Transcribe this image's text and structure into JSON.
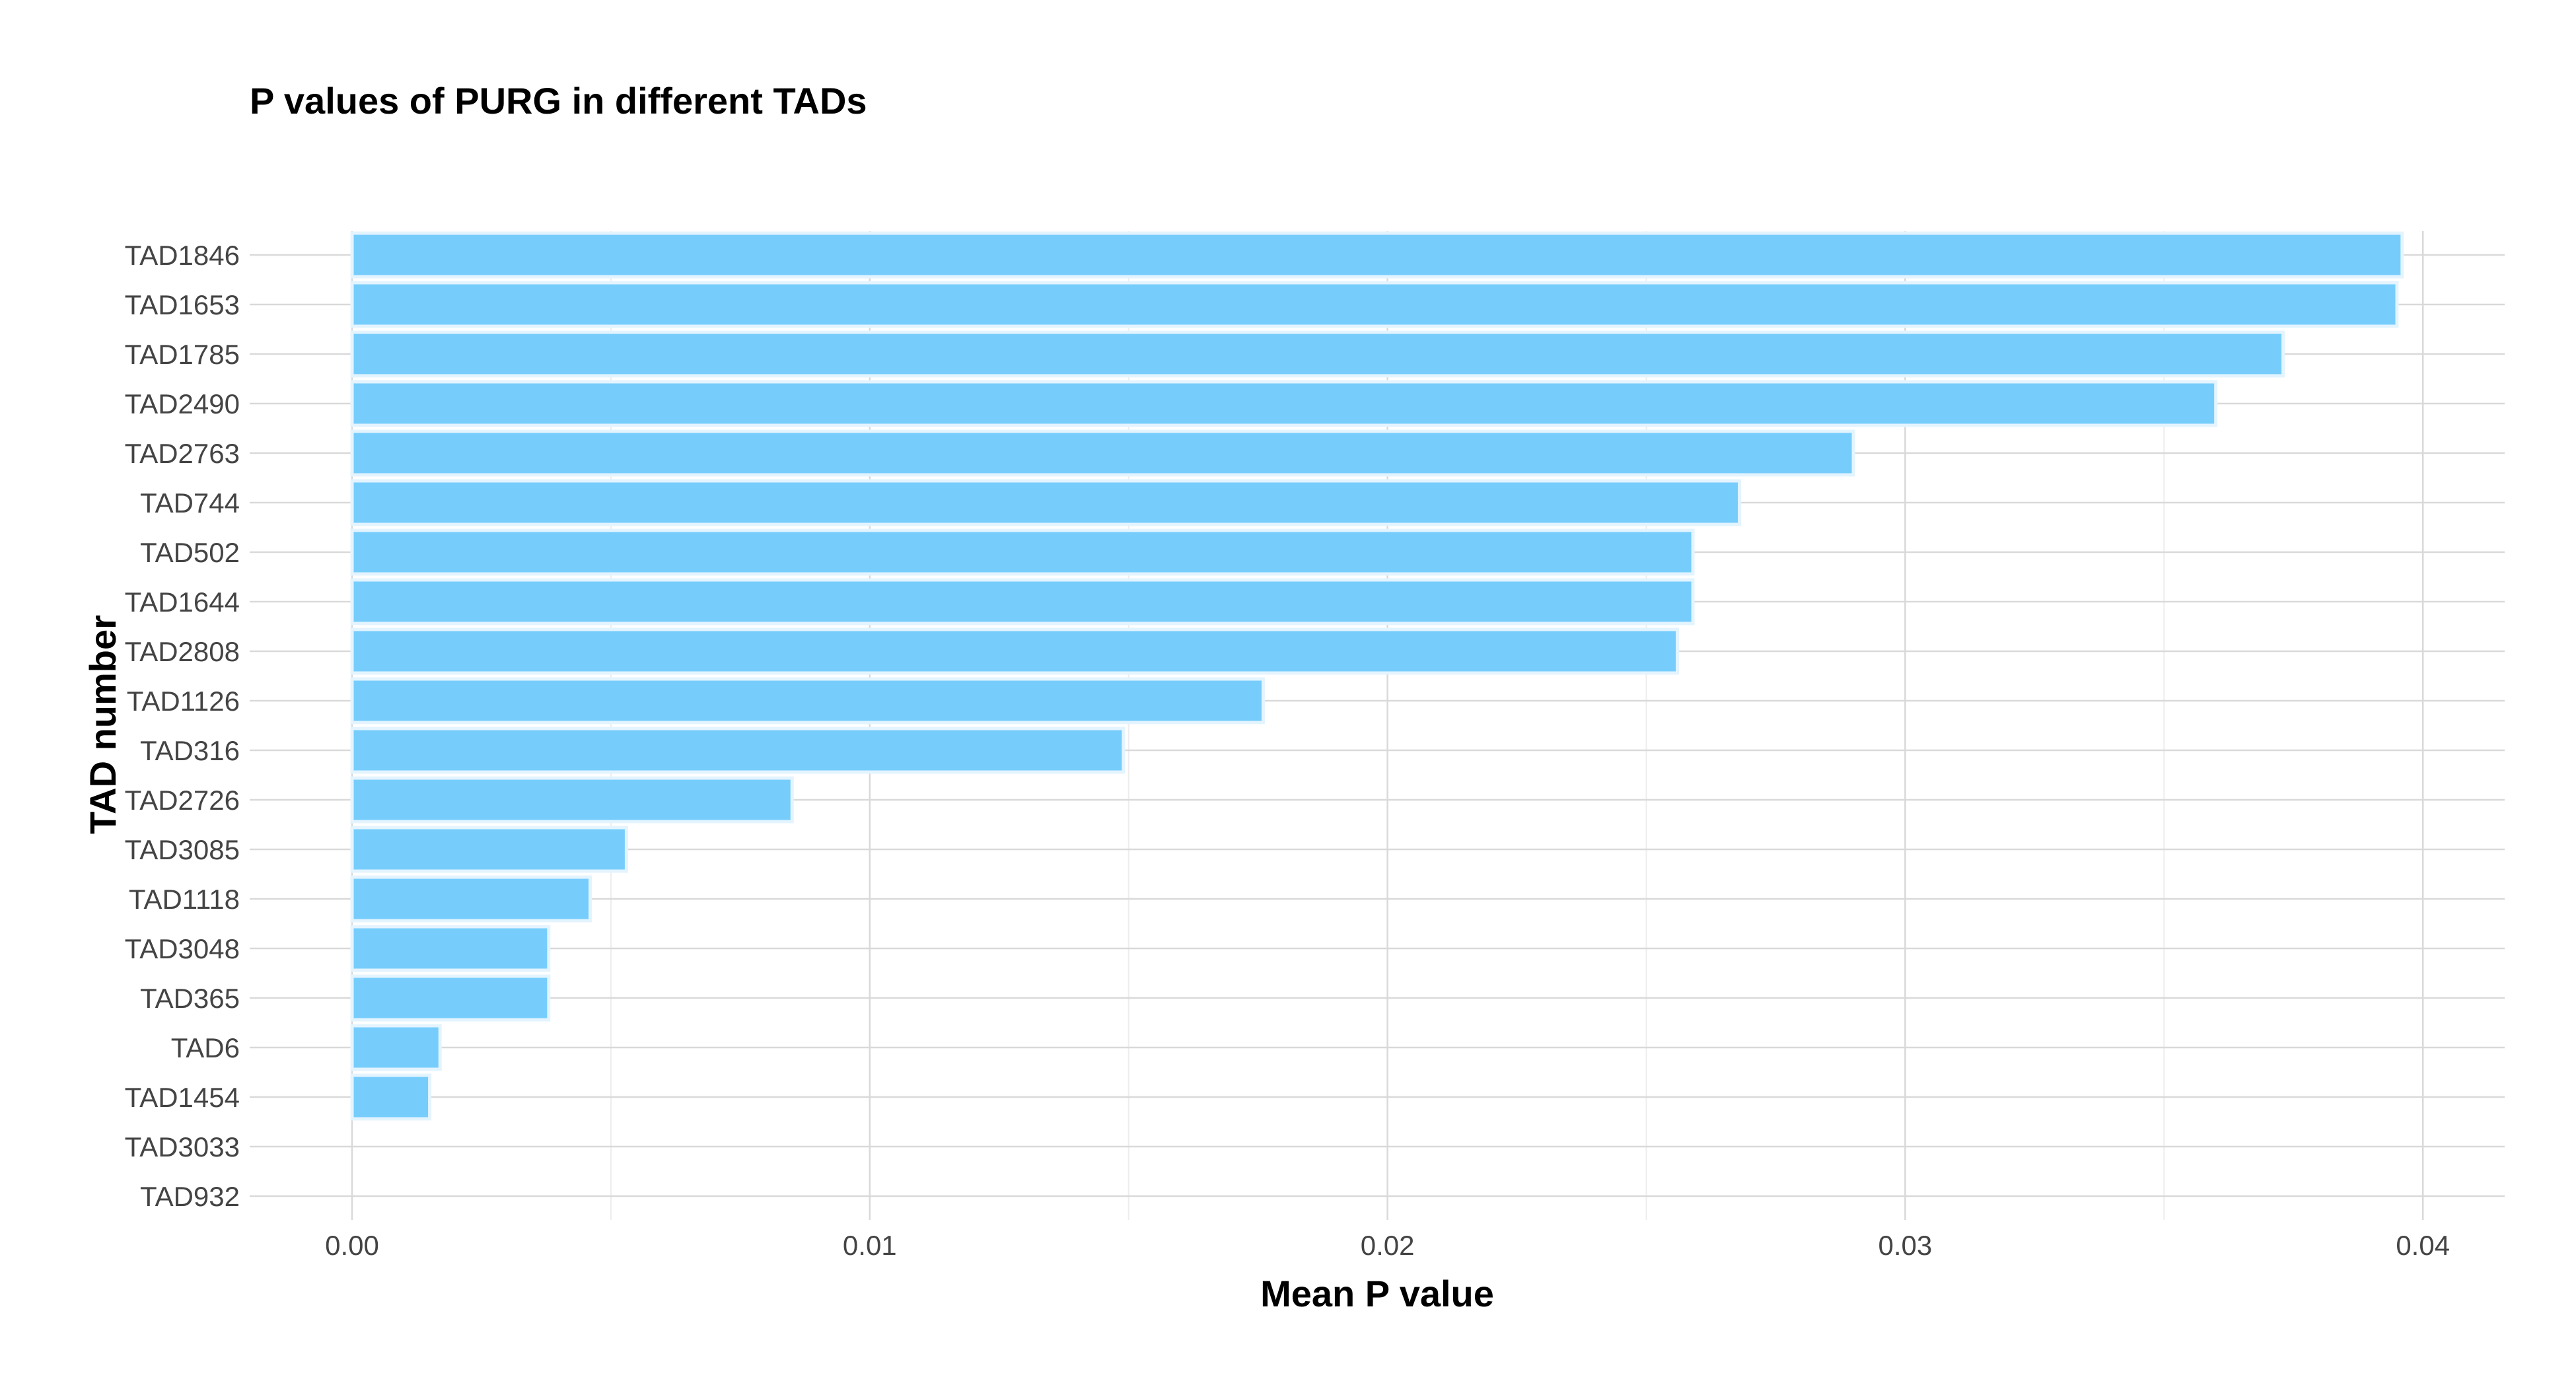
{
  "chart_data": {
    "type": "bar",
    "orientation": "horizontal",
    "title": "P values of PURG in different TADs",
    "xlabel": "Mean P value",
    "ylabel": "TAD number",
    "categories": [
      "TAD1846",
      "TAD1653",
      "TAD1785",
      "TAD2490",
      "TAD2763",
      "TAD744",
      "TAD502",
      "TAD1644",
      "TAD2808",
      "TAD1126",
      "TAD316",
      "TAD2726",
      "TAD3085",
      "TAD1118",
      "TAD3048",
      "TAD365",
      "TAD6",
      "TAD1454",
      "TAD3033",
      "TAD932"
    ],
    "values": [
      0.0396,
      0.0395,
      0.0373,
      0.036,
      0.029,
      0.0268,
      0.0259,
      0.0259,
      0.0256,
      0.0176,
      0.0149,
      0.0085,
      0.0053,
      0.0046,
      0.0038,
      0.0038,
      0.0017,
      0.0015,
      0.0,
      0.0
    ],
    "xlim": [
      -0.002,
      0.0417
    ],
    "xticks": [
      0.0,
      0.01,
      0.02,
      0.03,
      0.04
    ],
    "xtick_labels": [
      "0.00",
      "0.01",
      "0.02",
      "0.03",
      "0.04"
    ],
    "grid": true,
    "legend": "none",
    "bar_fill": "#76cdfc",
    "bar_outline": "#e4f4fe"
  }
}
